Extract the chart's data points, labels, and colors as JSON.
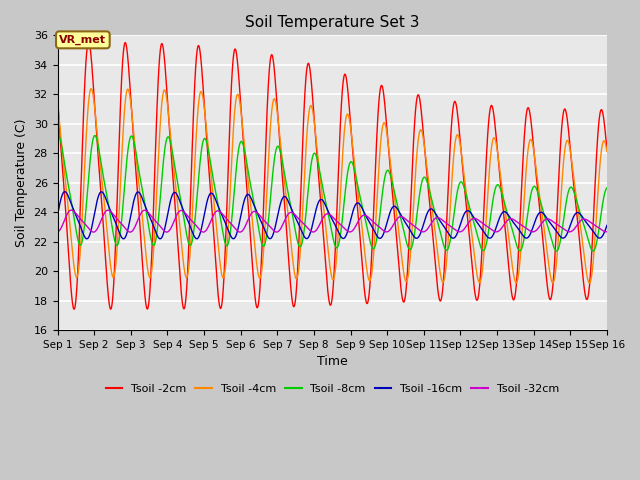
{
  "title": "Soil Temperature Set 3",
  "xlabel": "Time",
  "ylabel": "Soil Temperature (C)",
  "ylim": [
    16,
    36
  ],
  "yticks": [
    16,
    18,
    20,
    22,
    24,
    26,
    28,
    30,
    32,
    34,
    36
  ],
  "xtick_labels": [
    "Sep 1",
    "Sep 2",
    "Sep 3",
    "Sep 4",
    "Sep 5",
    "Sep 6",
    "Sep 7",
    "Sep 8",
    "Sep 9",
    "Sep 10",
    "Sep 11",
    "Sep 12",
    "Sep 13",
    "Sep 14",
    "Sep 15",
    "Sep 16"
  ],
  "annotation_text": "VR_met",
  "colors": {
    "Tsoil -2cm": "#ff0000",
    "Tsoil -4cm": "#ff8800",
    "Tsoil -8cm": "#00cc00",
    "Tsoil -16cm": "#0000bb",
    "Tsoil -32cm": "#cc00cc"
  },
  "legend_labels": [
    "Tsoil -2cm",
    "Tsoil -4cm",
    "Tsoil -8cm",
    "Tsoil -16cm",
    "Tsoil -32cm"
  ],
  "background_color": "#e8e8e8",
  "grid_color": "#ffffff",
  "fig_bg": "#c8c8c8"
}
